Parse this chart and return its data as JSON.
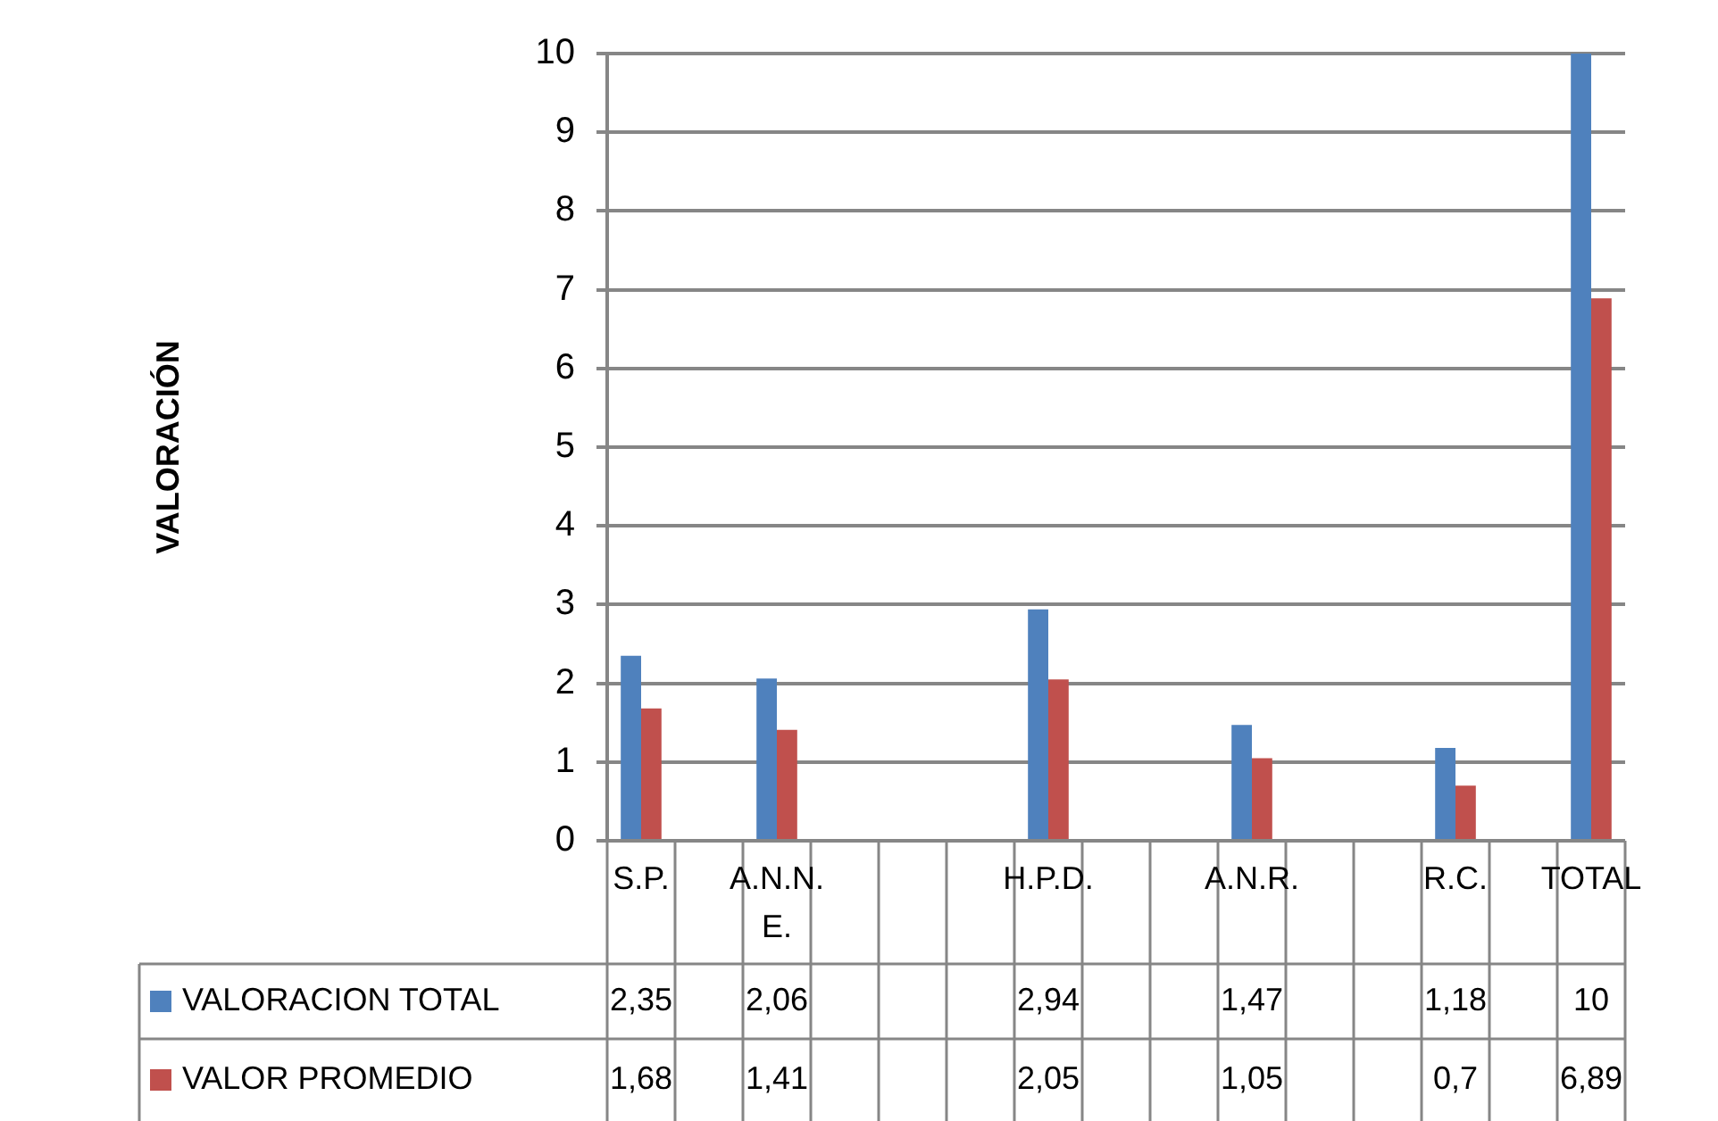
{
  "chart_data": {
    "type": "bar",
    "annotations": [
      "VALORACIÓN"
    ],
    "categories": [
      "S.P.",
      null,
      "A.N.N.E.",
      null,
      null,
      null,
      "H.P.D.",
      null,
      null,
      "A.N.R.",
      null,
      null,
      "R.C.",
      null,
      "TOTAL"
    ],
    "series": [
      {
        "name": "VALORACION TOTAL",
        "color": "#4f81bd",
        "values": [
          2.35,
          null,
          2.06,
          null,
          null,
          null,
          2.94,
          null,
          null,
          1.47,
          null,
          null,
          1.18,
          null,
          10
        ],
        "value_labels": [
          "2,35",
          null,
          "2,06",
          null,
          null,
          null,
          "2,94",
          null,
          null,
          "1,47",
          null,
          null,
          "1,18",
          null,
          "10"
        ]
      },
      {
        "name": "VALOR PROMEDIO",
        "color": "#c0504d",
        "values": [
          1.68,
          null,
          1.41,
          null,
          null,
          null,
          2.05,
          null,
          null,
          1.05,
          null,
          null,
          0.7,
          null,
          6.89
        ],
        "value_labels": [
          "1,68",
          null,
          "1,41",
          null,
          null,
          null,
          "2,05",
          null,
          null,
          "1,05",
          null,
          null,
          "0,7",
          null,
          "6,89"
        ]
      }
    ],
    "ylim": [
      0,
      10
    ],
    "yticks": [
      0,
      1,
      2,
      3,
      4,
      5,
      6,
      7,
      8,
      9,
      10
    ],
    "grid": "y",
    "legend": "bottom"
  }
}
